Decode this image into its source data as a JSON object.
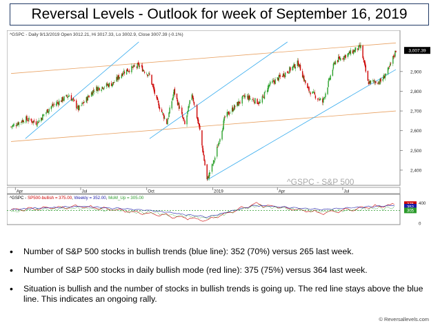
{
  "title": "Reversal Levels - Outlook for week of September 16, 2019",
  "chart_data": [
    {
      "type": "line",
      "panel": "price",
      "header": "^GSPC - Daily 9/13/2019 Open 3012.21, Hi 3017.33, Lo 3002.9, Close 3007.39 (-0.1%)",
      "watermark": "^GSPC - S&P 500",
      "last_price_label": "3,007.39",
      "y_ticks": [
        "2,900",
        "2,800",
        "2,700",
        "2,600",
        "2,500",
        "2,400"
      ],
      "y_tick_values": [
        2900,
        2800,
        2700,
        2600,
        2500,
        2400
      ],
      "ylim": [
        2330,
        3060
      ],
      "x_tick_labels": [
        "Apr",
        "Jul",
        "Oct",
        "2019",
        "Apr",
        "Jul"
      ],
      "x_tick_dates": [
        "2018-04-01",
        "2018-07-01",
        "2018-10-01",
        "2019-01-01",
        "2019-04-01",
        "2019-07-01"
      ],
      "date_range": [
        "2018-03-26",
        "2019-09-13"
      ],
      "series": [
        {
          "values": [
            [
              "2018-03-26",
              2620
            ],
            [
              "2018-04-15",
              2660
            ],
            [
              "2018-05-01",
              2640
            ],
            [
              "2018-05-20",
              2720
            ],
            [
              "2018-06-15",
              2780
            ],
            [
              "2018-06-28",
              2710
            ],
            [
              "2018-07-20",
              2810
            ],
            [
              "2018-08-15",
              2840
            ],
            [
              "2018-08-30",
              2900
            ],
            [
              "2018-09-20",
              2930
            ],
            [
              "2018-10-05",
              2880
            ],
            [
              "2018-10-15",
              2750
            ],
            [
              "2018-10-29",
              2640
            ],
            [
              "2018-11-08",
              2800
            ],
            [
              "2018-11-23",
              2630
            ],
            [
              "2018-12-03",
              2790
            ],
            [
              "2018-12-14",
              2600
            ],
            [
              "2018-12-24",
              2350
            ],
            [
              "2019-01-03",
              2450
            ],
            [
              "2019-01-18",
              2670
            ],
            [
              "2019-02-15",
              2775
            ],
            [
              "2019-03-08",
              2740
            ],
            [
              "2019-03-20",
              2830
            ],
            [
              "2019-04-15",
              2900
            ],
            [
              "2019-04-30",
              2945
            ],
            [
              "2019-05-13",
              2810
            ],
            [
              "2019-06-03",
              2745
            ],
            [
              "2019-06-20",
              2950
            ],
            [
              "2019-07-26",
              3025
            ],
            [
              "2019-08-05",
              2845
            ],
            [
              "2019-08-23",
              2850
            ],
            [
              "2019-09-03",
              2910
            ],
            [
              "2019-09-13",
              3007
            ]
          ]
        }
      ],
      "trend_channels": [
        {
          "color": "#e8a060",
          "points": [
            [
              "2018-03-26",
              2890
            ],
            [
              "2019-09-13",
              3045
            ]
          ]
        },
        {
          "color": "#e8a060",
          "points": [
            [
              "2018-03-26",
              2545
            ],
            [
              "2019-09-13",
              2700
            ]
          ]
        },
        {
          "color": "#33aaee",
          "points": [
            [
              "2018-04-15",
              2560
            ],
            [
              "2018-09-20",
              3050
            ]
          ]
        },
        {
          "color": "#33aaee",
          "points": [
            [
              "2018-10-05",
              2560
            ],
            [
              "2019-04-15",
              3050
            ]
          ]
        },
        {
          "color": "#33aaee",
          "points": [
            [
              "2018-12-24",
              2350
            ],
            [
              "2019-09-13",
              2910
            ]
          ]
        }
      ]
    },
    {
      "type": "line",
      "panel": "breadth",
      "header_parts": [
        {
          "text": "^GSPC - ",
          "color": "#000000"
        },
        {
          "text": "SP500-bullish = 375.00",
          "color": "#cc0000"
        },
        {
          "text": ", ",
          "color": "#000000"
        },
        {
          "text": "Weekly = 352.00",
          "color": "#1a1aa8"
        },
        {
          "text": ", ",
          "color": "#000000"
        },
        {
          "text": "MoM_Up = 305.00",
          "color": "#2a9a2a"
        }
      ],
      "y_ticks": [
        "400",
        "0"
      ],
      "y_tick_values": [
        400,
        0
      ],
      "ylim": [
        0,
        500
      ],
      "reference_line": 250,
      "value_tags": [
        {
          "text": "375",
          "color": "#cc0000",
          "value": 375
        },
        {
          "text": "352",
          "color": "#1a1aa8",
          "value": 352
        },
        {
          "text": "305",
          "color": "#2a9a2a",
          "value": 305
        }
      ],
      "series": [
        {
          "name": "SP500-bullish",
          "color": "#cc0000",
          "values": [
            [
              "2018-03-26",
              260
            ],
            [
              "2018-07-01",
              330
            ],
            [
              "2018-10-10",
              180
            ],
            [
              "2018-12-24",
              60
            ],
            [
              "2019-03-01",
              380
            ],
            [
              "2019-06-01",
              200
            ],
            [
              "2019-09-13",
              375
            ]
          ]
        },
        {
          "name": "Weekly",
          "color": "#1a1aa8",
          "values": [
            [
              "2018-03-26",
              270
            ],
            [
              "2018-07-01",
              330
            ],
            [
              "2018-10-10",
              250
            ],
            [
              "2018-12-24",
              120
            ],
            [
              "2019-03-01",
              350
            ],
            [
              "2019-06-01",
              270
            ],
            [
              "2019-09-13",
              352
            ]
          ]
        },
        {
          "name": "MoM_Up",
          "color": "#2a9a2a",
          "values": [
            [
              "2018-03-26",
              230
            ],
            [
              "2018-07-01",
              300
            ],
            [
              "2018-10-10",
              200
            ],
            [
              "2018-12-24",
              100
            ],
            [
              "2019-03-01",
              340
            ],
            [
              "2019-06-01",
              230
            ],
            [
              "2019-09-13",
              305
            ]
          ]
        }
      ]
    }
  ],
  "bullets": [
    "Number of S&P 500 stocks in bullish trends (blue line): 352 (70%) versus 265 last week.",
    "Number of S&P 500 stocks in daily bullish mode (red line): 375 (75%) versus 364 last week.",
    "Situation is bullish and the number of stocks in bullish trends is going up. The red line stays above the blue line. This indicates an ongoing rally."
  ],
  "copyright": "© Reversallevels.com",
  "colors": {
    "up_candle": "#2aa02a",
    "down_candle": "#cc0000",
    "title_border": "#1f3864",
    "price_tag": "#000000"
  }
}
